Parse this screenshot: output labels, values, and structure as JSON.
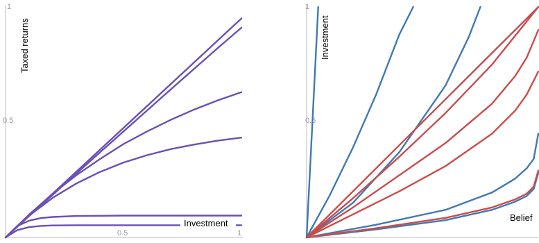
{
  "chart_data": [
    {
      "type": "line",
      "title": "",
      "xlabel": "Investment",
      "ylabel": "Taxed returns",
      "xlim": [
        0,
        1
      ],
      "ylim": [
        0,
        1
      ],
      "x_ticks": [
        "0.5",
        "1"
      ],
      "y_ticks": [
        "0.5",
        "1"
      ],
      "grid": false,
      "series_color": "#6a4fb4",
      "series": [
        {
          "x": [
            0,
            0.1,
            0.2,
            0.3,
            0.4,
            0.5,
            0.6,
            0.7,
            0.8,
            0.9,
            1.0
          ],
          "y": [
            0,
            0.095,
            0.19,
            0.285,
            0.38,
            0.475,
            0.57,
            0.665,
            0.76,
            0.855,
            0.95
          ]
        },
        {
          "x": [
            0,
            0.1,
            0.2,
            0.3,
            0.4,
            0.5,
            0.6,
            0.7,
            0.8,
            0.9,
            1.0
          ],
          "y": [
            0,
            0.093,
            0.185,
            0.277,
            0.369,
            0.46,
            0.551,
            0.642,
            0.732,
            0.822,
            0.91
          ]
        },
        {
          "x": [
            0,
            0.1,
            0.2,
            0.3,
            0.4,
            0.5,
            0.6,
            0.7,
            0.8,
            0.9,
            1.0
          ],
          "y": [
            0,
            0.099,
            0.19,
            0.27,
            0.34,
            0.405,
            0.46,
            0.51,
            0.555,
            0.595,
            0.63
          ]
        },
        {
          "x": [
            0,
            0.1,
            0.2,
            0.3,
            0.4,
            0.5,
            0.6,
            0.7,
            0.8,
            0.9,
            1.0
          ],
          "y": [
            0,
            0.095,
            0.172,
            0.234,
            0.284,
            0.325,
            0.357,
            0.383,
            0.403,
            0.42,
            0.433
          ]
        },
        {
          "x": [
            0,
            0.05,
            0.1,
            0.15,
            0.2,
            0.3,
            0.4,
            0.5,
            0.7,
            1.0
          ],
          "y": [
            0,
            0.05,
            0.073,
            0.084,
            0.089,
            0.093,
            0.094,
            0.095,
            0.095,
            0.095
          ]
        },
        {
          "x": [
            0,
            0.05,
            0.1,
            0.15,
            0.2,
            0.3,
            0.4,
            0.5,
            0.7,
            1.0
          ],
          "y": [
            0,
            0.032,
            0.045,
            0.05,
            0.052,
            0.053,
            0.053,
            0.053,
            0.053,
            0.053
          ]
        }
      ]
    },
    {
      "type": "line",
      "title": "",
      "xlabel": "Belief",
      "ylabel": "Investment",
      "xlim": [
        0,
        1
      ],
      "ylim": [
        0,
        1
      ],
      "x_ticks": [],
      "y_ticks": [
        "0.5",
        "1"
      ],
      "grid": false,
      "series": [
        {
          "color": "#3f79b4",
          "x": [
            0,
            0.02,
            0.04,
            0.05
          ],
          "y": [
            0,
            0.4,
            0.8,
            1.0
          ]
        },
        {
          "color": "#3f79b4",
          "x": [
            0,
            0.1,
            0.2,
            0.3,
            0.4,
            0.46
          ],
          "y": [
            0,
            0.183,
            0.39,
            0.62,
            0.88,
            1.0
          ]
        },
        {
          "color": "#3f79b4",
          "x": [
            0,
            0.2,
            0.4,
            0.6,
            0.7,
            0.75
          ],
          "y": [
            0,
            0.15,
            0.37,
            0.66,
            0.87,
            1.0
          ]
        },
        {
          "color": "#3f79b4",
          "x": [
            0,
            0.3,
            0.6,
            0.8,
            0.9,
            0.95,
            0.98,
            1.0
          ],
          "y": [
            0,
            0.055,
            0.12,
            0.195,
            0.255,
            0.3,
            0.34,
            0.45
          ]
        },
        {
          "color": "#3f79b4",
          "x": [
            0,
            0.3,
            0.6,
            0.8,
            0.9,
            0.95,
            0.98,
            1.0
          ],
          "y": [
            0,
            0.035,
            0.075,
            0.12,
            0.155,
            0.18,
            0.21,
            0.28
          ]
        },
        {
          "color": "#c94c4c",
          "x": [
            0,
            0.2,
            0.4,
            0.6,
            0.8,
            1.0
          ],
          "y": [
            0,
            0.2,
            0.4,
            0.6,
            0.8,
            1.0
          ]
        },
        {
          "color": "#c94c4c",
          "x": [
            0,
            0.2,
            0.4,
            0.6,
            0.8,
            1.0
          ],
          "y": [
            0,
            0.17,
            0.35,
            0.54,
            0.75,
            1.0
          ]
        },
        {
          "color": "#c94c4c",
          "x": [
            0,
            0.2,
            0.4,
            0.6,
            0.8,
            0.9,
            0.95,
            1.0
          ],
          "y": [
            0,
            0.13,
            0.27,
            0.41,
            0.58,
            0.7,
            0.78,
            0.9
          ]
        },
        {
          "color": "#c94c4c",
          "x": [
            0,
            0.2,
            0.4,
            0.6,
            0.8,
            0.9,
            0.95,
            1.0
          ],
          "y": [
            0,
            0.1,
            0.2,
            0.31,
            0.45,
            0.55,
            0.62,
            0.72
          ]
        },
        {
          "color": "#c94c4c",
          "x": [
            0,
            0.3,
            0.6,
            0.8,
            0.9,
            0.95,
            0.98,
            1.0
          ],
          "y": [
            0,
            0.04,
            0.085,
            0.13,
            0.165,
            0.19,
            0.22,
            0.29
          ]
        }
      ]
    }
  ]
}
